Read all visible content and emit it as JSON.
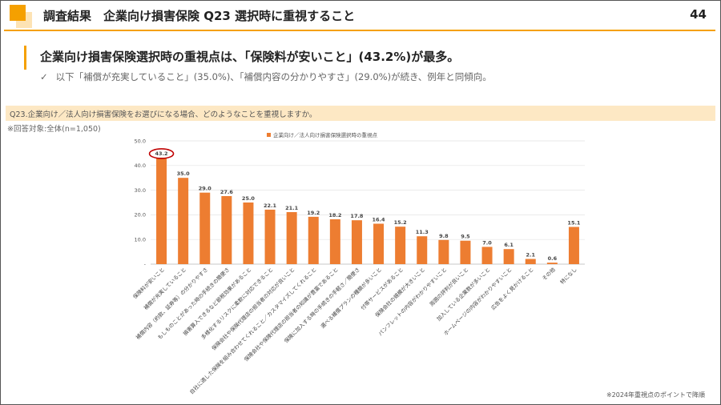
{
  "header": {
    "title": "調査結果　企業向け損害保険 Q23 選択時に重視すること",
    "page_number": "44"
  },
  "summary": {
    "headline": "企業向け損害保険選択時の重視点は、「保険料が安いこと」(43.2%)が最多。",
    "checkmark": "✓",
    "subline": "以下「補償が充実していること」(35.0%)、「補償内容の分かりやすさ」(29.0%)が続き、例年と同傾向。"
  },
  "question": {
    "text": "Q23.企業向け／法人向け損害保険をお選びになる場合、どのようなことを重視しますか。",
    "respondents": "※回答対象:全体(n=1,050)"
  },
  "footnote": "※2024年重視点のポイントで降順",
  "chart_data": {
    "type": "bar",
    "legend": "企業向け／法人向け損害保険選択時の重視点",
    "legend_position": "top-center",
    "ylim": [
      0,
      50
    ],
    "yticks": [
      "-",
      "10.0",
      "20.0",
      "30.0",
      "40.0",
      "50.0"
    ],
    "grid": true,
    "bar_color": "#ed7d31",
    "highlight_index": 0,
    "highlight_color": "#c00000",
    "categories": [
      "保険料が安いこと",
      "補償が充実していること",
      "補償内容（約款、証券等）の分かりやすさ",
      "もしものことがあった時の手続きの簡便さ",
      "損害算入できるなど節税効果があること",
      "多様化するリスクに柔軟に対応できること",
      "保険会社や保険代理店の担当者の対応が良いこと",
      "自社に適した保険を組み合わせてくれること／カスタマイズしてくれること",
      "保険会社や保険代理店の担当者の知識が豊富であること",
      "保険に加入する時の手続きの手軽さ／簡便さ",
      "選べる補償プランの種類が多いこと",
      "付帯サービスがあること",
      "保険会社の規模が大きいこと",
      "パンフレットの内容がわかりやすいこと",
      "周囲の評判が良いこと",
      "加入している企業数が多いこと",
      "ホームページの内容がわかりやすいこと",
      "広告をよく見かけること",
      "その他",
      "特になし"
    ],
    "values": [
      43.2,
      35.0,
      29.0,
      27.6,
      25.0,
      22.1,
      21.1,
      19.2,
      18.2,
      17.8,
      16.4,
      15.2,
      11.3,
      9.8,
      9.5,
      7.0,
      6.1,
      2.1,
      0.6,
      15.1
    ],
    "value_labels": [
      "43.2",
      "35.0",
      "29.0",
      "27.6",
      "25.0",
      "22.1",
      "21.1",
      "19.2",
      "18.2",
      "17.8",
      "16.4",
      "15.2",
      "11.3",
      "9.8",
      "9.5",
      "7.0",
      "6.1",
      "2.1",
      "0.6",
      "15.1"
    ]
  }
}
